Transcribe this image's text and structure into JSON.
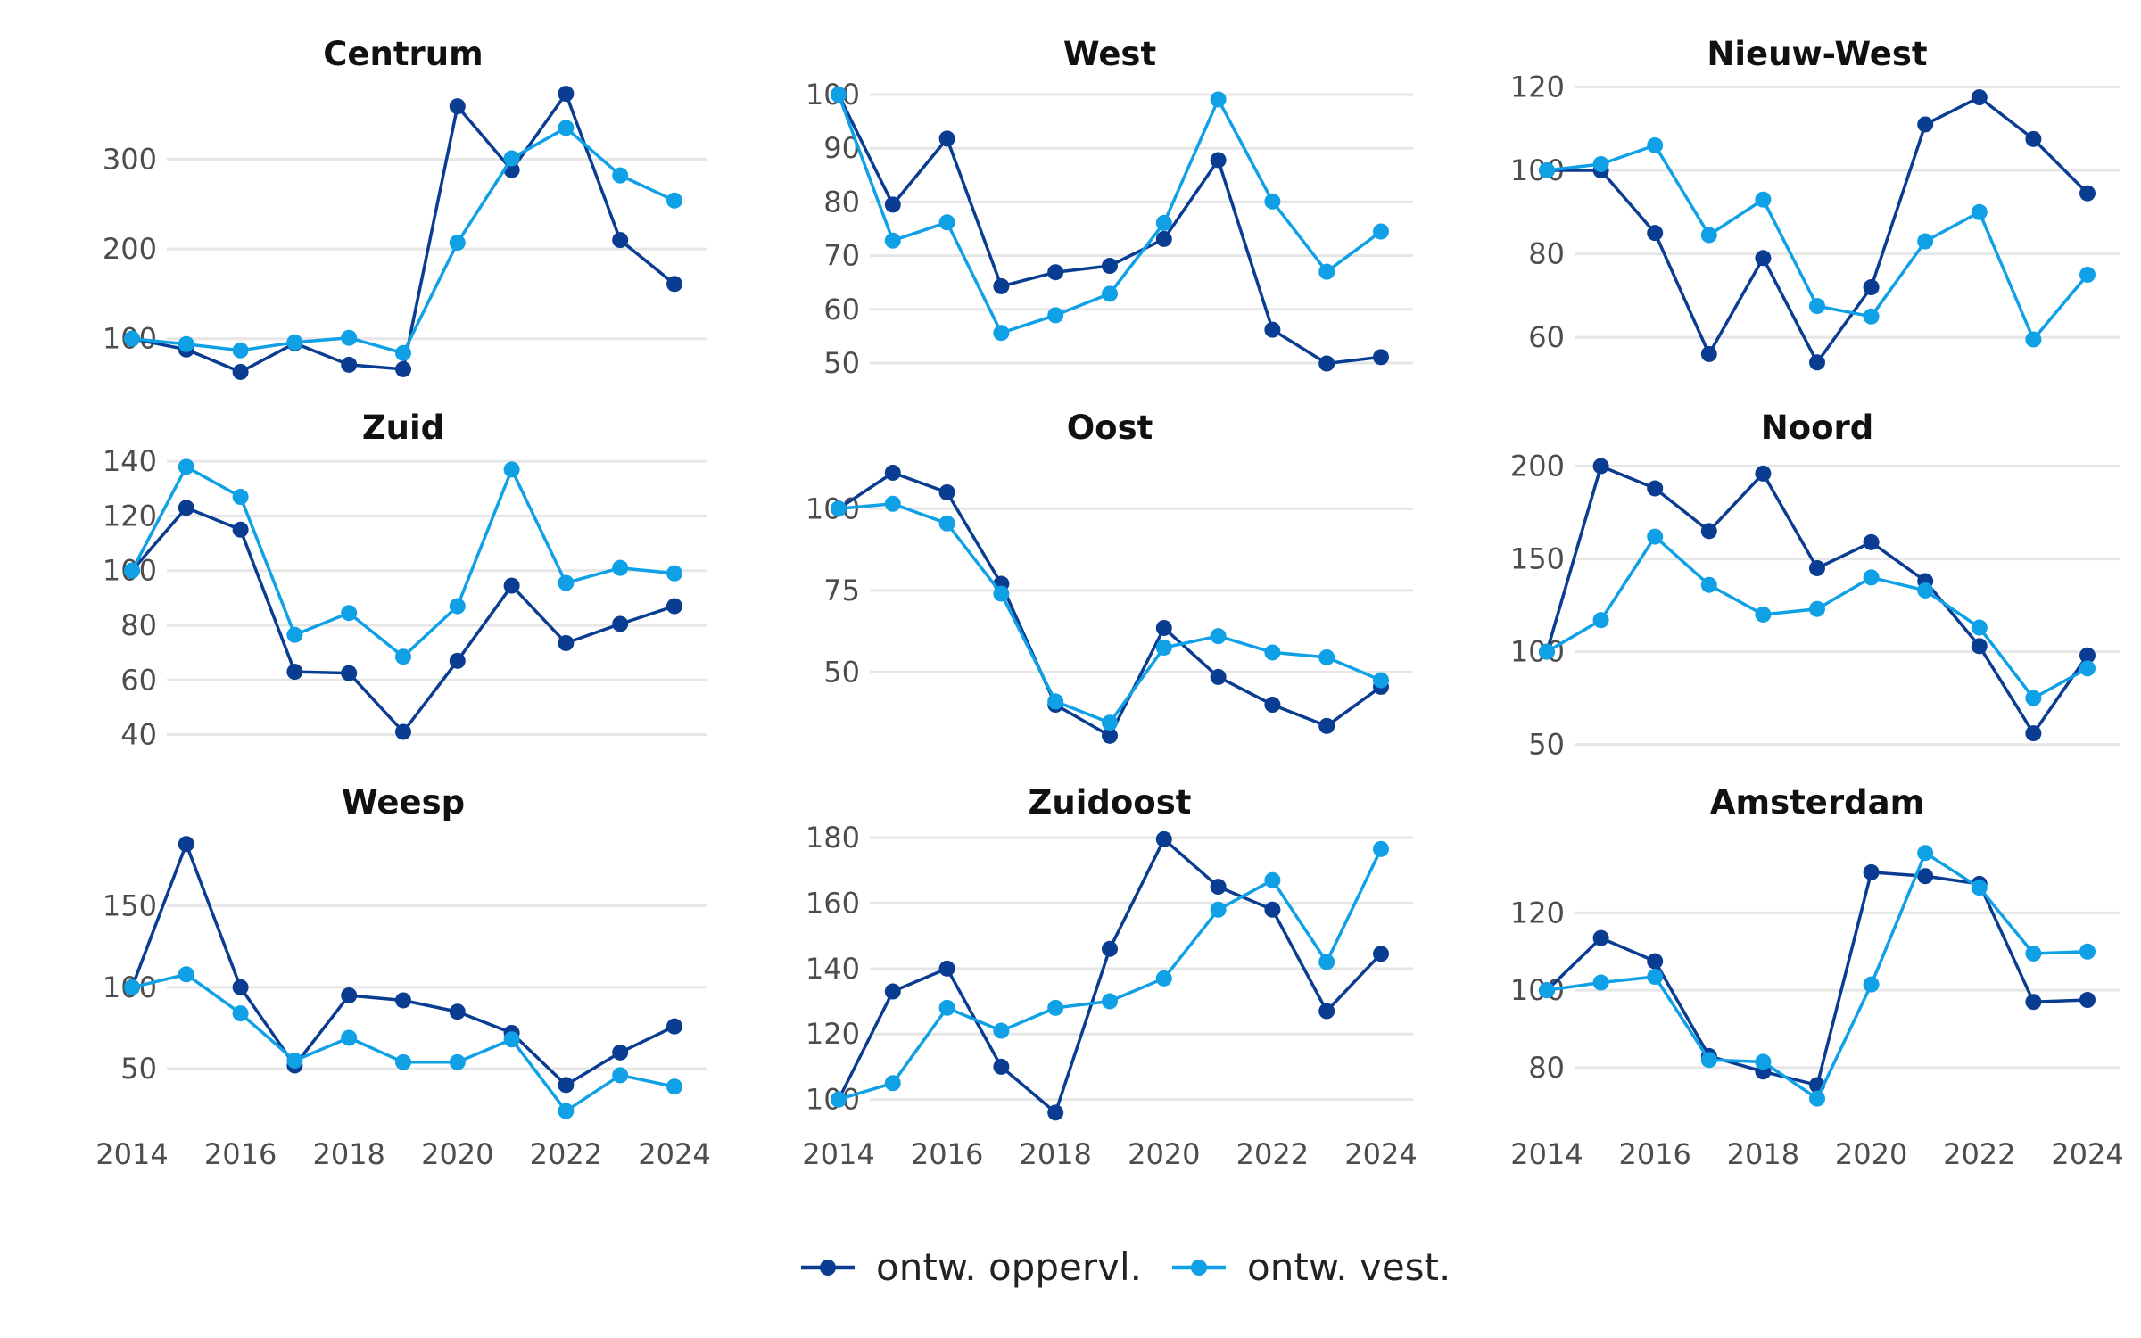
{
  "legend": [
    {
      "label": "ontw. oppervl.",
      "color": "#0a3d91"
    },
    {
      "label": "ontw. vest.",
      "color": "#0fa0e6"
    }
  ],
  "chart_data": [
    {
      "type": "line",
      "title": "Centrum",
      "x": [
        2014,
        2015,
        2016,
        2017,
        2018,
        2019,
        2020,
        2021,
        2022,
        2023,
        2024
      ],
      "ylim": [
        55,
        390
      ],
      "yticks": [
        100,
        200,
        300
      ],
      "series": [
        {
          "name": "ontw. oppervl.",
          "values": [
            100,
            88,
            63,
            95,
            71,
            66,
            359,
            288,
            373,
            210,
            161
          ]
        },
        {
          "name": "ontw. vest.",
          "values": [
            100,
            94,
            87,
            96,
            101,
            84,
            207,
            301,
            335,
            282,
            254
          ]
        }
      ]
    },
    {
      "type": "line",
      "title": "West",
      "x": [
        2014,
        2015,
        2016,
        2017,
        2018,
        2019,
        2020,
        2021,
        2022,
        2023,
        2024
      ],
      "ylim": [
        47,
        103
      ],
      "yticks": [
        50,
        60,
        70,
        80,
        90,
        100
      ],
      "series": [
        {
          "name": "ontw. oppervl.",
          "values": [
            100,
            79.5,
            91.8,
            64.3,
            66.9,
            68.1,
            73.1,
            87.8,
            56.2,
            49.9,
            51.1
          ]
        },
        {
          "name": "ontw. vest.",
          "values": [
            100,
            72.8,
            76.2,
            55.6,
            58.9,
            62.9,
            76.1,
            99.1,
            80.1,
            67,
            74.5
          ]
        }
      ]
    },
    {
      "type": "line",
      "title": "Nieuw-West",
      "x": [
        2014,
        2015,
        2016,
        2017,
        2018,
        2019,
        2020,
        2021,
        2022,
        2023,
        2024
      ],
      "ylim": [
        50,
        122
      ],
      "yticks": [
        60,
        80,
        100,
        120
      ],
      "series": [
        {
          "name": "ontw. oppervl.",
          "values": [
            100,
            100,
            85,
            56,
            79,
            54,
            72,
            111,
            117.5,
            107.5,
            94.5
          ]
        },
        {
          "name": "ontw. vest.",
          "values": [
            100,
            101.5,
            106,
            84.5,
            93,
            67.5,
            65,
            83,
            90,
            59.5,
            75
          ]
        }
      ]
    },
    {
      "type": "line",
      "title": "Zuid",
      "x": [
        2014,
        2015,
        2016,
        2017,
        2018,
        2019,
        2020,
        2021,
        2022,
        2023,
        2024
      ],
      "ylim": [
        33,
        143
      ],
      "yticks": [
        40,
        60,
        80,
        100,
        120,
        140
      ],
      "series": [
        {
          "name": "ontw. oppervl.",
          "values": [
            100,
            123,
            115,
            63,
            62.5,
            41,
            67,
            94.5,
            73.5,
            80.5,
            87
          ]
        },
        {
          "name": "ontw. vest.",
          "values": [
            100,
            138,
            127,
            76.5,
            84.5,
            68.5,
            87,
            137,
            95.5,
            101,
            99
          ]
        }
      ]
    },
    {
      "type": "line",
      "title": "Oost",
      "x": [
        2014,
        2015,
        2016,
        2017,
        2018,
        2019,
        2020,
        2021,
        2022,
        2023,
        2024
      ],
      "ylim": [
        25,
        117
      ],
      "yticks": [
        50,
        75,
        100
      ],
      "series": [
        {
          "name": "ontw. oppervl.",
          "values": [
            100,
            111,
            105,
            77,
            40,
            30.5,
            63.5,
            48.5,
            40,
            33.5,
            45.5
          ]
        },
        {
          "name": "ontw. vest.",
          "values": [
            100,
            101.5,
            95.5,
            74,
            41,
            34.5,
            57.5,
            61,
            56,
            54.5,
            47.5
          ]
        }
      ]
    },
    {
      "type": "line",
      "title": "Noord",
      "x": [
        2014,
        2015,
        2016,
        2017,
        2018,
        2019,
        2020,
        2021,
        2022,
        2023,
        2024
      ],
      "ylim": [
        45,
        207
      ],
      "yticks": [
        50,
        100,
        150,
        200
      ],
      "series": [
        {
          "name": "ontw. oppervl.",
          "values": [
            100,
            200,
            188,
            165,
            196,
            145,
            159,
            138,
            103,
            56,
            98
          ]
        },
        {
          "name": "ontw. vest.",
          "values": [
            100,
            117,
            162,
            136,
            120,
            123,
            140,
            133,
            113,
            75,
            91
          ]
        }
      ]
    },
    {
      "type": "line",
      "title": "Weesp",
      "x": [
        2014,
        2015,
        2016,
        2017,
        2018,
        2019,
        2020,
        2021,
        2022,
        2023,
        2024
      ],
      "ylim": [
        15,
        198
      ],
      "yticks": [
        50,
        100,
        150
      ],
      "series": [
        {
          "name": "ontw. oppervl.",
          "values": [
            100,
            188,
            100,
            52,
            95,
            92,
            85,
            72,
            40,
            60,
            76
          ]
        },
        {
          "name": "ontw. vest.",
          "values": [
            100,
            108,
            84,
            55,
            69,
            54,
            54,
            68,
            24,
            46,
            39
          ]
        }
      ]
    },
    {
      "type": "line",
      "title": "Zuidoost",
      "x": [
        2014,
        2015,
        2016,
        2017,
        2018,
        2019,
        2020,
        2021,
        2022,
        2023,
        2024
      ],
      "ylim": [
        92,
        183
      ],
      "yticks": [
        100,
        120,
        140,
        160,
        180
      ],
      "series": [
        {
          "name": "ontw. oppervl.",
          "values": [
            100,
            133,
            140,
            110,
            96,
            146,
            179.5,
            165,
            158,
            127,
            144.5
          ]
        },
        {
          "name": "ontw. vest.",
          "values": [
            100,
            105,
            128,
            121,
            128,
            130,
            137,
            158,
            167,
            142,
            176.5
          ]
        }
      ]
    },
    {
      "type": "line",
      "title": "Amsterdam",
      "x": [
        2014,
        2015,
        2016,
        2017,
        2018,
        2019,
        2020,
        2021,
        2022,
        2023,
        2024
      ],
      "ylim": [
        65,
        142
      ],
      "yticks": [
        80,
        100,
        120
      ],
      "series": [
        {
          "name": "ontw. oppervl.",
          "values": [
            100,
            113.5,
            107.5,
            83,
            79,
            75.5,
            130.5,
            129.5,
            127.5,
            97,
            97.5
          ]
        },
        {
          "name": "ontw. vest.",
          "values": [
            100,
            102,
            103.5,
            82,
            81.5,
            72,
            101.5,
            135.5,
            126.5,
            109.5,
            110
          ]
        }
      ]
    }
  ],
  "xticks": [
    2014,
    2016,
    2018,
    2020,
    2022,
    2024
  ]
}
